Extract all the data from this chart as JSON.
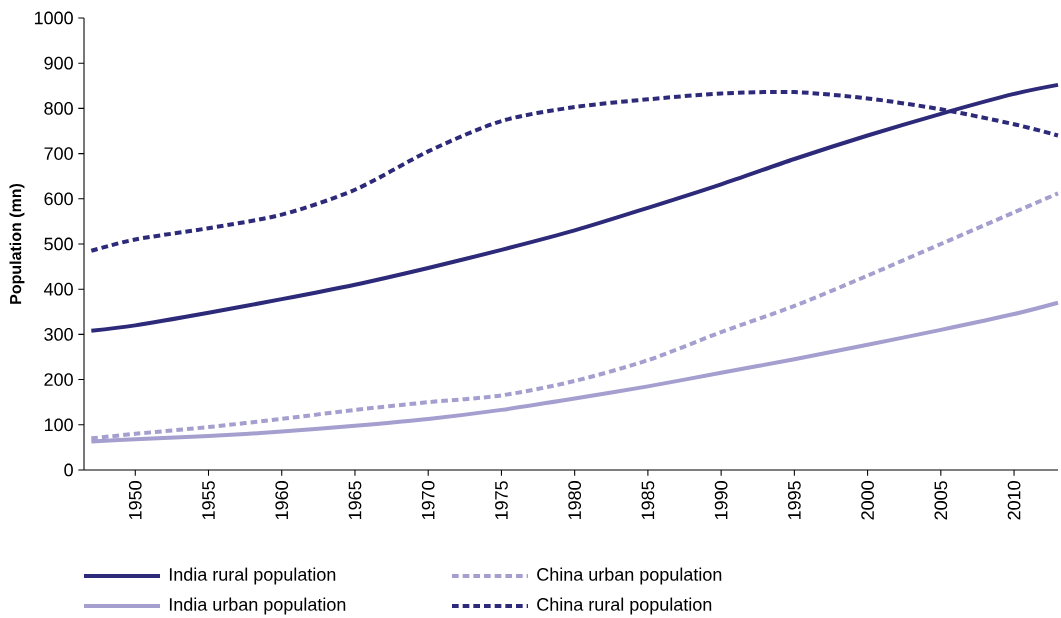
{
  "chart_data": {
    "type": "line",
    "ylabel": "Population (mn)",
    "x": [
      1947,
      1950,
      1955,
      1960,
      1965,
      1970,
      1975,
      1980,
      1985,
      1990,
      1995,
      2000,
      2005,
      2010,
      2013
    ],
    "series": [
      {
        "name": "India rural population",
        "color": "#2e2a7a",
        "line_style": "solid",
        "values": [
          308,
          320,
          348,
          378,
          410,
          447,
          487,
          530,
          580,
          632,
          688,
          740,
          788,
          832,
          852
        ]
      },
      {
        "name": "China urban population",
        "color": "#a49fcf",
        "line_style": "dashed",
        "values": [
          70,
          80,
          95,
          113,
          133,
          150,
          165,
          197,
          243,
          305,
          363,
          430,
          500,
          570,
          612
        ]
      },
      {
        "name": "India urban population",
        "color": "#a49fcf",
        "line_style": "solid",
        "values": [
          63,
          68,
          75,
          85,
          98,
          113,
          133,
          158,
          185,
          215,
          245,
          277,
          310,
          345,
          370
        ]
      },
      {
        "name": "China rural population",
        "color": "#2e2a7a",
        "line_style": "dashed",
        "values": [
          485,
          510,
          535,
          565,
          620,
          705,
          772,
          803,
          820,
          833,
          836,
          822,
          798,
          765,
          740
        ]
      }
    ],
    "xlim": [
      1946.5,
      2013
    ],
    "ylim": [
      0,
      1000
    ],
    "xticks": [
      1950,
      1955,
      1960,
      1965,
      1970,
      1975,
      1980,
      1985,
      1990,
      1995,
      2000,
      2005,
      2010
    ],
    "yticks": [
      0,
      100,
      200,
      300,
      400,
      500,
      600,
      700,
      800,
      900,
      1000
    ],
    "grid": false,
    "legend": "bottom"
  }
}
